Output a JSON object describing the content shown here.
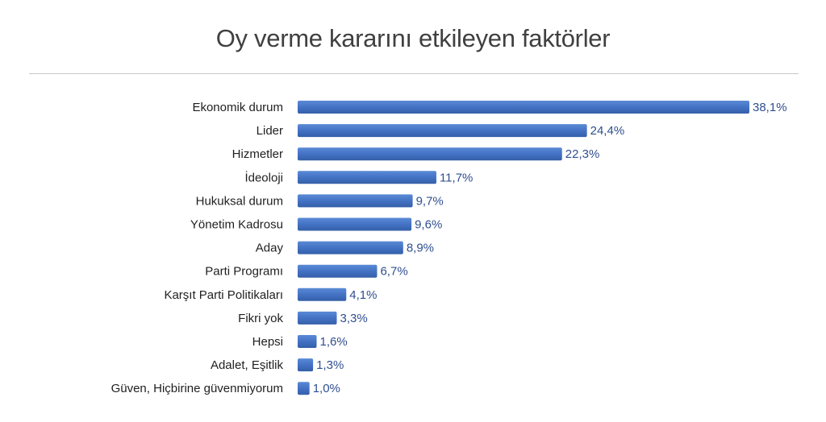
{
  "chart_data": {
    "type": "bar",
    "orientation": "horizontal",
    "title": "Oy verme kararını etkileyen faktörler",
    "xlabel": "",
    "ylabel": "",
    "xlim": [
      0,
      38.1
    ],
    "grid": false,
    "bar_color": "#4472c4",
    "value_label_color": "#2f4f8f",
    "categories": [
      "Ekonomik durum",
      "Lider",
      "Hizmetler",
      "İdeoloji",
      "Hukuksal durum",
      "Yönetim Kadrosu",
      "Aday",
      "Parti Programı",
      "Karşıt Parti Politikaları",
      "Fikri yok",
      "Hepsi",
      "Adalet, Eşitlik",
      "Güven, Hiçbirine güvenmiyorum"
    ],
    "values": [
      38.1,
      24.4,
      22.3,
      11.7,
      9.7,
      9.6,
      8.9,
      6.7,
      4.1,
      3.3,
      1.6,
      1.3,
      1.0
    ],
    "value_labels": [
      "38,1%",
      "24,4%",
      "22,3%",
      "11,7%",
      "9,7%",
      "9,6%",
      "8,9%",
      "6,7%",
      "4,1%",
      "3,3%",
      "1,6%",
      "1,3%",
      "1,0%"
    ]
  }
}
